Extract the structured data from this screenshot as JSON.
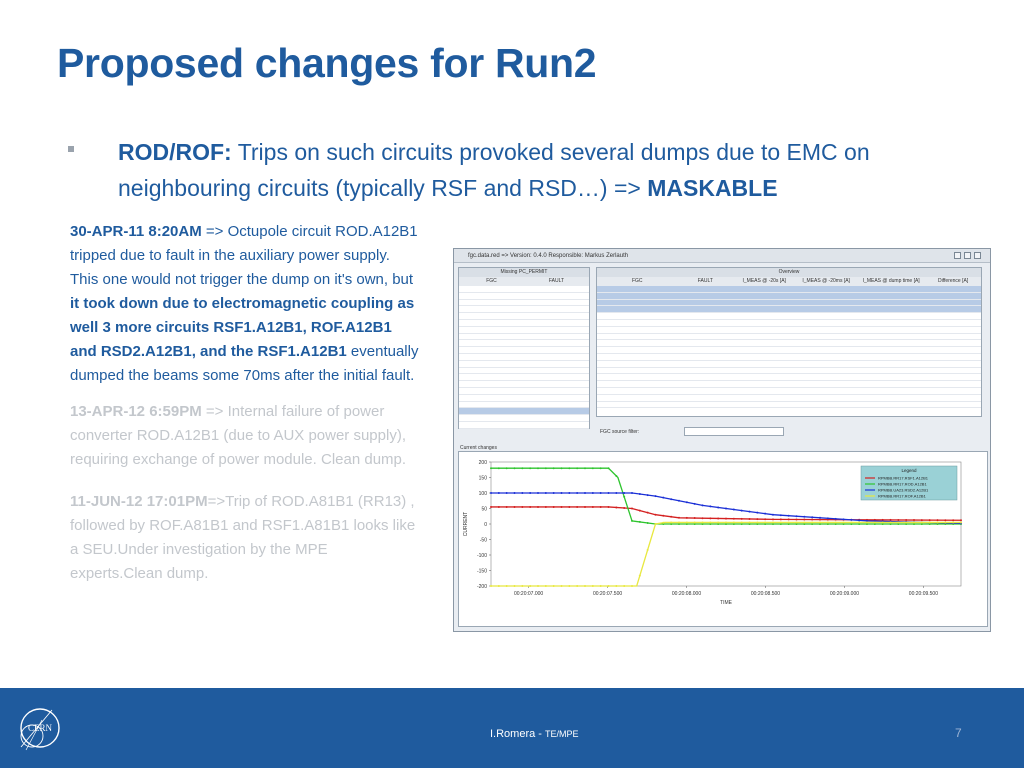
{
  "title": "Proposed changes for Run2",
  "bullet": {
    "label": "ROD/ROF:",
    "text": " Trips on such circuits provoked several dumps due to EMC on neighbouring circuits (typically RSF and RSD…) => ",
    "emphasis": "MASKABLE"
  },
  "events": [
    {
      "date": "30-APR-11 8:20AM",
      "text1": "  => Octupole circuit ROD.A12B1 tripped due to fault in the auxiliary power supply. This one would not trigger the dump on it's own, but ",
      "bold": "it took down due to electromagnetic coupling as well 3 more circuits RSF1.A12B1, ROF.A12B1 and RSD2.A12B1, and the RSF1.A12B1",
      "text2": " eventually dumped the beams some 70ms after the initial fault."
    },
    {
      "date": "13-APR-12 6:59PM",
      "text": "  => Internal failure of power converter ROD.A12B1 (due to AUX power supply), requiring exchange of power module. Clean dump."
    },
    {
      "date": "11-JUN-12 17:01PM",
      "text": "=>Trip of ROD.A81B1 (RR13) , followed by ROF.A81B1 and RSF1.A81B1 looks like a SEU.Under investigation by the MPE experts.Clean dump."
    }
  ],
  "screenshot": {
    "window_title": "fgc.data.red => Version: 0.4.0  Responsible: Markus Zerlauth",
    "left_table_title": "Missing PC_PERMIT",
    "left_cols": [
      "FGC",
      "FAULT"
    ],
    "overview_title": "Overview",
    "overview_cols": [
      "FGC",
      "FAULT",
      "I_MEAS @ -20s [A]",
      "I_MEAS @ -20ms [A]",
      "I_MEAS @ dump time [A]",
      "Difference [A]"
    ],
    "filter_label": "FGC source filter:",
    "chart_title": "Current changes",
    "chart_xlabel": "TIME",
    "chart_ylabel": "CURRENT",
    "legend_title": "Legend"
  },
  "chart_data": {
    "type": "line",
    "title": "Current changes",
    "xlabel": "TIME",
    "ylabel": "CURRENT",
    "x_ticks": [
      "00:20:07.000",
      "00:20:07.500",
      "00:20:08.000",
      "00:20:08.500",
      "00:20:09.000",
      "00:20:09.500"
    ],
    "y_ticks": [
      200,
      150,
      100,
      50,
      0,
      -50,
      -100,
      -150,
      -200
    ],
    "ylim": [
      -200,
      200
    ],
    "series": [
      {
        "name": "RPMBB.RR17.RSF1.A12B1",
        "color": "#d42020",
        "x": [
          0,
          0.25,
          0.3,
          0.35,
          0.4,
          0.6,
          1.0
        ],
        "y": [
          55,
          55,
          50,
          30,
          20,
          15,
          12
        ]
      },
      {
        "name": "RPMBB.RR17.ROD.A12B1",
        "color": "#2ec42e",
        "x": [
          0,
          0.25,
          0.27,
          0.3,
          0.35,
          1.0
        ],
        "y": [
          180,
          180,
          150,
          10,
          0,
          0
        ]
      },
      {
        "name": "RPMBB.UA23.RSD2.A12B1",
        "color": "#1a2fd6",
        "x": [
          0,
          0.3,
          0.35,
          0.45,
          0.6,
          0.8,
          1.0
        ],
        "y": [
          100,
          100,
          90,
          60,
          30,
          10,
          2
        ]
      },
      {
        "name": "RPMBB.RR17.ROF.A12B1",
        "color": "#e8e840",
        "x": [
          0,
          0.3,
          0.31,
          0.35,
          0.37,
          1.0
        ],
        "y": [
          -200,
          -200,
          -200,
          0,
          5,
          5
        ]
      }
    ]
  },
  "footer": {
    "author": "I.Romera - ",
    "dept": "TE/MPE",
    "page": "7",
    "logo_text": "CERN"
  },
  "colors": {
    "title": "#1f5b9e",
    "footer_bg": "#1f5b9e",
    "dim_text": "#c3c7cc"
  }
}
